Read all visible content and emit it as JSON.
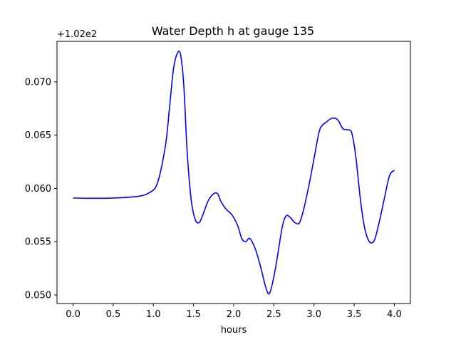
{
  "chart_data": {
    "type": "line",
    "title": "Water Depth h at gauge 135",
    "xlabel": "hours",
    "ylabel": "",
    "y_offset_label": "+1.02e2",
    "xlim": [
      -0.2,
      4.2
    ],
    "ylim": [
      0.0492,
      0.0738
    ],
    "x_ticks": [
      0.0,
      0.5,
      1.0,
      1.5,
      2.0,
      2.5,
      3.0,
      3.5,
      4.0
    ],
    "x_tick_labels": [
      "0.0",
      "0.5",
      "1.0",
      "1.5",
      "2.0",
      "2.5",
      "3.0",
      "3.5",
      "4.0"
    ],
    "y_ticks": [
      0.05,
      0.055,
      0.06,
      0.065,
      0.07
    ],
    "y_tick_labels": [
      "0.050",
      "0.055",
      "0.060",
      "0.065",
      "0.070"
    ],
    "grid": false,
    "series": [
      {
        "color": "#0000ff",
        "x": [
          0.0,
          0.2,
          0.5,
          0.8,
          0.95,
          1.05,
          1.15,
          1.2,
          1.25,
          1.3,
          1.34,
          1.38,
          1.42,
          1.47,
          1.52,
          1.57,
          1.62,
          1.68,
          1.75,
          1.8,
          1.84,
          1.9,
          1.98,
          2.05,
          2.1,
          2.15,
          2.2,
          2.27,
          2.34,
          2.4,
          2.45,
          2.52,
          2.6,
          2.65,
          2.7,
          2.76,
          2.82,
          2.88,
          2.95,
          3.0,
          3.06,
          3.1,
          3.15,
          3.2,
          3.25,
          3.3,
          3.36,
          3.42,
          3.47,
          3.52,
          3.58,
          3.63,
          3.68,
          3.72,
          3.76,
          3.82,
          3.88,
          3.94,
          4.0
        ],
        "y": [
          0.0591,
          0.05907,
          0.0591,
          0.05925,
          0.0596,
          0.0605,
          0.064,
          0.0675,
          0.0712,
          0.0727,
          0.0725,
          0.0695,
          0.0635,
          0.059,
          0.0571,
          0.0568,
          0.0576,
          0.0588,
          0.0595,
          0.0595,
          0.0588,
          0.0581,
          0.0575,
          0.0565,
          0.0553,
          0.055,
          0.0553,
          0.0543,
          0.0525,
          0.0507,
          0.0502,
          0.0525,
          0.0562,
          0.0574,
          0.0573,
          0.0568,
          0.0568,
          0.0583,
          0.0608,
          0.0628,
          0.0652,
          0.0659,
          0.0662,
          0.0665,
          0.0666,
          0.0664,
          0.0656,
          0.0655,
          0.0652,
          0.063,
          0.0588,
          0.0563,
          0.0551,
          0.0549,
          0.0553,
          0.0571,
          0.0592,
          0.0612,
          0.0617
        ]
      }
    ]
  }
}
